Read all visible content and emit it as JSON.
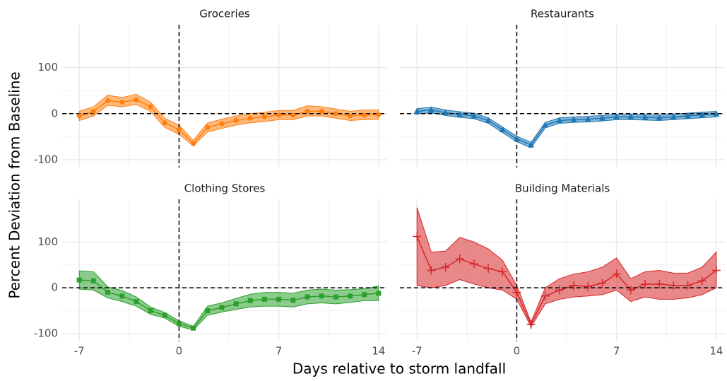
{
  "xlabel": "Days relative to storm landfall",
  "ylabel": "Percent Deviation from Baseline",
  "chart_data": [
    {
      "type": "line",
      "title": "Groceries",
      "color": "#ff7f0e",
      "marker": "circle",
      "x": [
        -7,
        -6,
        -5,
        -4,
        -3,
        -2,
        -1,
        0,
        1,
        2,
        3,
        4,
        5,
        6,
        7,
        8,
        9,
        10,
        11,
        12,
        13,
        14
      ],
      "values": [
        -5,
        5,
        28,
        25,
        30,
        15,
        -20,
        -35,
        -65,
        -30,
        -22,
        -15,
        -10,
        -7,
        -3,
        -3,
        5,
        5,
        0,
        -5,
        -3,
        -2
      ],
      "lower": [
        -15,
        -5,
        18,
        15,
        20,
        5,
        -30,
        -45,
        -70,
        -40,
        -32,
        -25,
        -20,
        -17,
        -13,
        -13,
        -5,
        -5,
        -10,
        -15,
        -13,
        -12
      ],
      "upper": [
        5,
        15,
        40,
        35,
        42,
        25,
        -10,
        -25,
        -58,
        -20,
        -12,
        -5,
        0,
        3,
        7,
        7,
        17,
        15,
        10,
        5,
        8,
        8
      ],
      "xlim": [
        -8.2,
        14.6
      ],
      "ylim": [
        -117,
        193
      ],
      "xticks": [
        -7,
        0,
        7,
        14
      ],
      "yticks": [
        -100,
        0,
        100
      ],
      "hline": 0,
      "vline": 0,
      "grid": true
    },
    {
      "type": "line",
      "title": "Restaurants",
      "color": "#1f77b4",
      "marker": "triangle",
      "x": [
        -7,
        -6,
        -5,
        -4,
        -3,
        -2,
        -1,
        0,
        1,
        2,
        3,
        4,
        5,
        6,
        7,
        8,
        9,
        10,
        11,
        12,
        13,
        14
      ],
      "values": [
        5,
        8,
        2,
        -2,
        -5,
        -15,
        -35,
        -55,
        -68,
        -25,
        -15,
        -13,
        -12,
        -10,
        -7,
        -7,
        -8,
        -9,
        -7,
        -5,
        -3,
        -1
      ],
      "lower": [
        -1,
        2,
        -4,
        -8,
        -11,
        -21,
        -41,
        -61,
        -74,
        -31,
        -21,
        -19,
        -18,
        -16,
        -13,
        -13,
        -14,
        -15,
        -13,
        -11,
        -9,
        -7
      ],
      "upper": [
        11,
        14,
        8,
        4,
        1,
        -9,
        -29,
        -49,
        -62,
        -19,
        -9,
        -7,
        -6,
        -4,
        -1,
        -1,
        -2,
        -3,
        -1,
        1,
        3,
        5
      ],
      "xlim": [
        -8.2,
        14.6
      ],
      "ylim": [
        -117,
        193
      ],
      "xticks": [
        -7,
        0,
        7,
        14
      ],
      "yticks": [
        -100,
        0,
        100
      ],
      "hline": 0,
      "vline": 0,
      "grid": true
    },
    {
      "type": "line",
      "title": "Clothing Stores",
      "color": "#2ca02c",
      "marker": "square",
      "x": [
        -7,
        -6,
        -5,
        -4,
        -3,
        -2,
        -1,
        0,
        1,
        2,
        3,
        4,
        5,
        6,
        7,
        8,
        9,
        10,
        11,
        12,
        13,
        14
      ],
      "values": [
        17,
        15,
        -10,
        -18,
        -30,
        -50,
        -60,
        -78,
        -88,
        -50,
        -43,
        -35,
        -28,
        -25,
        -25,
        -27,
        -20,
        -18,
        -20,
        -18,
        -15,
        -12
      ],
      "lower": [
        -3,
        -5,
        -22,
        -30,
        -40,
        -58,
        -66,
        -84,
        -92,
        -60,
        -53,
        -47,
        -42,
        -40,
        -40,
        -42,
        -35,
        -33,
        -35,
        -32,
        -28,
        -28
      ],
      "upper": [
        37,
        35,
        2,
        -6,
        -20,
        -42,
        -54,
        -72,
        -84,
        -40,
        -33,
        -23,
        -14,
        -10,
        -10,
        -12,
        -5,
        -3,
        -5,
        -4,
        -2,
        4
      ],
      "xlim": [
        -8.2,
        14.6
      ],
      "ylim": [
        -117,
        193
      ],
      "xticks": [
        -7,
        0,
        7,
        14
      ],
      "yticks": [
        -100,
        0,
        100
      ],
      "hline": 0,
      "vline": 0,
      "grid": true
    },
    {
      "type": "line",
      "title": "Building Materials",
      "color": "#d62728",
      "marker": "plus",
      "x": [
        -7,
        -6,
        -5,
        -4,
        -3,
        -2,
        -1,
        0,
        1,
        2,
        3,
        4,
        5,
        6,
        7,
        8,
        9,
        10,
        11,
        12,
        13,
        14
      ],
      "values": [
        112,
        38,
        45,
        63,
        52,
        42,
        35,
        -10,
        -80,
        -18,
        -5,
        5,
        3,
        10,
        30,
        -5,
        8,
        8,
        5,
        5,
        15,
        38
      ],
      "lower": [
        5,
        0,
        5,
        18,
        8,
        0,
        -5,
        -25,
        -85,
        -35,
        -25,
        -20,
        -18,
        -15,
        -5,
        -30,
        -20,
        -25,
        -25,
        -22,
        -15,
        0
      ],
      "upper": [
        175,
        78,
        80,
        110,
        100,
        85,
        60,
        5,
        -75,
        0,
        20,
        30,
        35,
        45,
        65,
        20,
        35,
        38,
        32,
        32,
        45,
        78
      ],
      "xlim": [
        -8.2,
        14.6
      ],
      "ylim": [
        -117,
        193
      ],
      "xticks": [
        -7,
        0,
        7,
        14
      ],
      "yticks": [
        -100,
        0,
        100
      ],
      "hline": 0,
      "vline": 0,
      "grid": true
    }
  ]
}
